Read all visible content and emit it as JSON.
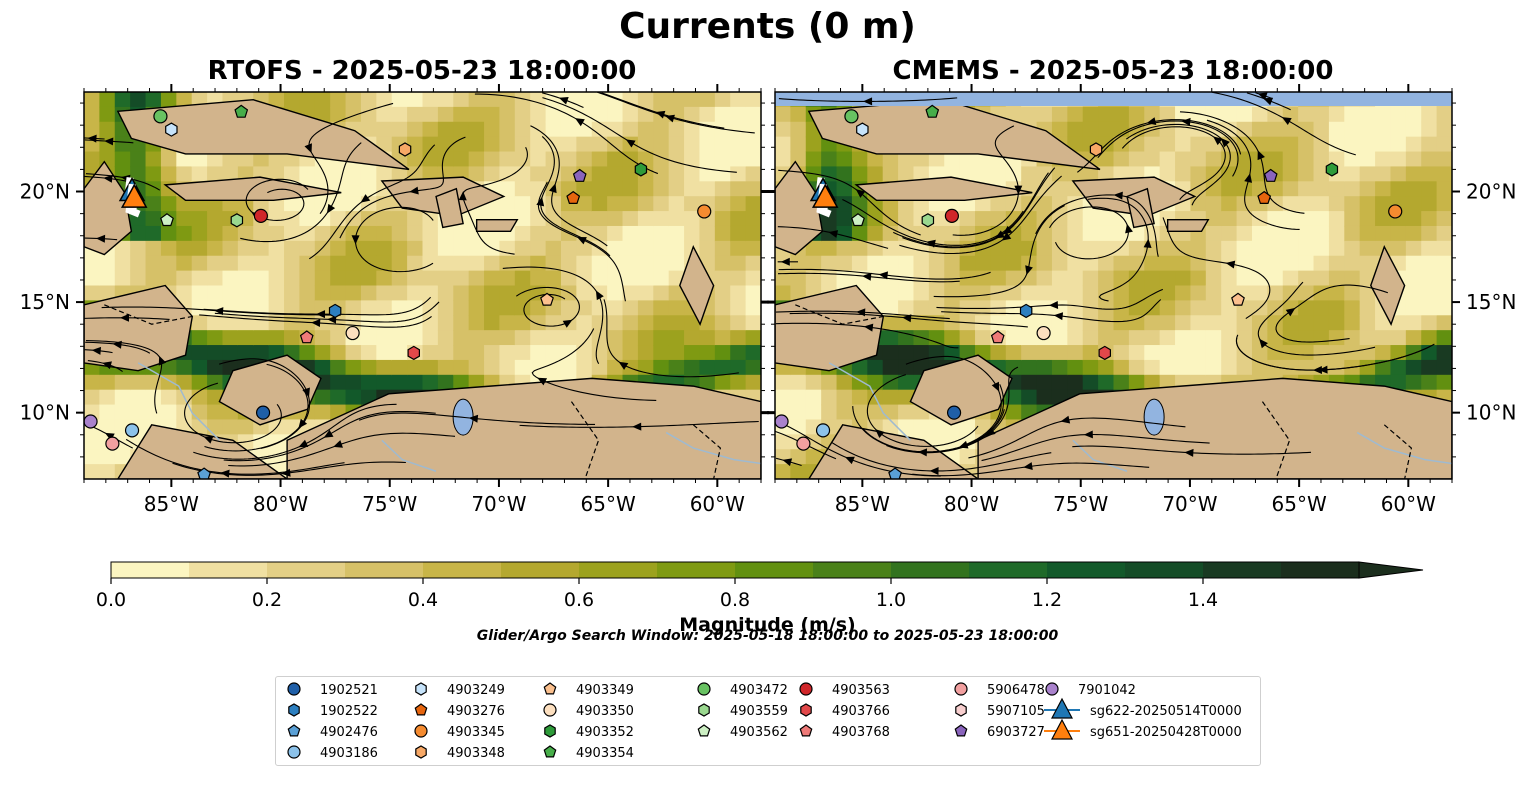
{
  "figure": {
    "suptitle": "Currents (0 m)",
    "search_window": "Glider/Argo Search Window: 2025-05-18 18:00:00 to 2025-05-23 18:00:00"
  },
  "chart_data": [
    {
      "type": "heatmap",
      "title": "RTOFS - 2025-05-23 18:00:00",
      "x_ticks": [
        "85°W",
        "80°W",
        "75°W",
        "70°W",
        "65°W",
        "60°W"
      ],
      "y_ticks": [
        "20°N",
        "15°N",
        "10°N"
      ],
      "xlim": [
        -89,
        -58
      ],
      "ylim": [
        7,
        24.5
      ],
      "field": "surface current magnitude with streamlines"
    },
    {
      "type": "heatmap",
      "title": "CMEMS - 2025-05-23 18:00:00",
      "x_ticks": [
        "85°W",
        "80°W",
        "75°W",
        "70°W",
        "65°W",
        "60°W"
      ],
      "y_ticks": [
        "20°N",
        "15°N",
        "10°N"
      ],
      "xlim": [
        -89,
        -58
      ],
      "ylim": [
        7,
        24.5
      ],
      "field": "surface current magnitude with streamlines"
    }
  ],
  "colorbar": {
    "label": "Magnitude (m/s)",
    "ticks": [
      "0.0",
      "0.2",
      "0.4",
      "0.6",
      "0.8",
      "1.0",
      "1.2",
      "1.4"
    ],
    "min": 0.0,
    "max": 1.6,
    "step": 0.1,
    "extend": "max",
    "colors": [
      "#fbf5c1",
      "#f0e0a2",
      "#e3cf86",
      "#d6c168",
      "#c8b548",
      "#b4a82f",
      "#9ca21e",
      "#7f9a12",
      "#629010",
      "#4a8119",
      "#32731e",
      "#1f6a29",
      "#12592a",
      "#144c27",
      "#193a22",
      "#1b2e1d"
    ]
  },
  "legend": {
    "items": [
      {
        "label": "1902521",
        "marker": "circle",
        "color": "#1f5fa8"
      },
      {
        "label": "1902522",
        "marker": "hexagon",
        "color": "#2c7fc0"
      },
      {
        "label": "4902476",
        "marker": "pentagon",
        "color": "#5aa0d6"
      },
      {
        "label": "4903186",
        "marker": "circle",
        "color": "#8cc2ea"
      },
      {
        "label": "4903249",
        "marker": "hexagon",
        "color": "#c6e3fa"
      },
      {
        "label": "4903276",
        "marker": "pentagon",
        "color": "#e6650e"
      },
      {
        "label": "4903345",
        "marker": "circle",
        "color": "#f58b30"
      },
      {
        "label": "4903348",
        "marker": "hexagon",
        "color": "#f7a866"
      },
      {
        "label": "4903349",
        "marker": "pentagon",
        "color": "#fbc08e"
      },
      {
        "label": "4903350",
        "marker": "circle",
        "color": "#fde0c0"
      },
      {
        "label": "4903352",
        "marker": "hexagon",
        "color": "#2e9b3a"
      },
      {
        "label": "4903354",
        "marker": "pentagon",
        "color": "#47ae4a"
      },
      {
        "label": "4903472",
        "marker": "circle",
        "color": "#68c262"
      },
      {
        "label": "4903559",
        "marker": "hexagon",
        "color": "#9ad88f"
      },
      {
        "label": "4903562",
        "marker": "pentagon",
        "color": "#cdf0c4"
      },
      {
        "label": "4903563",
        "marker": "circle",
        "color": "#d0262a"
      },
      {
        "label": "4903766",
        "marker": "hexagon",
        "color": "#e2484a"
      },
      {
        "label": "4903768",
        "marker": "pentagon",
        "color": "#ef7a78"
      },
      {
        "label": "5906478",
        "marker": "circle",
        "color": "#f2a0a0"
      },
      {
        "label": "5907105",
        "marker": "hexagon",
        "color": "#f8cfcf"
      },
      {
        "label": "6903727",
        "marker": "pentagon",
        "color": "#8a64bc"
      },
      {
        "label": "7901042",
        "marker": "circle",
        "color": "#a982cc"
      },
      {
        "label": "sg622-20250514T0000",
        "marker": "triangle-line",
        "color": "#1f77b4"
      },
      {
        "label": "sg651-20250428T0000",
        "marker": "triangle-line",
        "color": "#ff7f0e"
      }
    ]
  },
  "floats": [
    {
      "id": "4903354",
      "lon": -81.8,
      "lat": 23.6,
      "color": "#47ae4a",
      "marker": "pentagon"
    },
    {
      "id": "4903472",
      "lon": -85.5,
      "lat": 23.4,
      "color": "#68c262",
      "marker": "circle"
    },
    {
      "id": "4903249",
      "lon": -85.0,
      "lat": 22.8,
      "color": "#c6e3fa",
      "marker": "hexagon"
    },
    {
      "id": "4903348",
      "lon": -74.3,
      "lat": 21.9,
      "color": "#f7a866",
      "marker": "hexagon"
    },
    {
      "id": "6903727",
      "lon": -66.3,
      "lat": 20.7,
      "color": "#8a64bc",
      "marker": "pentagon"
    },
    {
      "id": "4903352",
      "lon": -63.5,
      "lat": 21.0,
      "color": "#2e9b3a",
      "marker": "hexagon"
    },
    {
      "id": "4903276",
      "lon": -66.6,
      "lat": 19.7,
      "color": "#e6650e",
      "marker": "pentagon"
    },
    {
      "id": "4903345",
      "lon": -60.6,
      "lat": 19.1,
      "color": "#f58b30",
      "marker": "circle"
    },
    {
      "id": "4903562",
      "lon": -85.2,
      "lat": 18.7,
      "color": "#cdf0c4",
      "marker": "pentagon"
    },
    {
      "id": "4903559",
      "lon": -82.0,
      "lat": 18.7,
      "color": "#9ad88f",
      "marker": "hexagon"
    },
    {
      "id": "4903563",
      "lon": -80.9,
      "lat": 18.9,
      "color": "#d0262a",
      "marker": "circle"
    },
    {
      "id": "4903349",
      "lon": -67.8,
      "lat": 15.1,
      "color": "#fbc08e",
      "marker": "pentagon"
    },
    {
      "id": "1902522",
      "lon": -77.5,
      "lat": 14.6,
      "color": "#2c7fc0",
      "marker": "hexagon"
    },
    {
      "id": "4903350",
      "lon": -76.7,
      "lat": 13.6,
      "color": "#fde0c0",
      "marker": "circle"
    },
    {
      "id": "4903768",
      "lon": -78.8,
      "lat": 13.4,
      "color": "#ef7a78",
      "marker": "pentagon"
    },
    {
      "id": "4903766",
      "lon": -73.9,
      "lat": 12.7,
      "color": "#e2484a",
      "marker": "hexagon"
    },
    {
      "id": "1902521",
      "lon": -80.8,
      "lat": 10.0,
      "color": "#1f5fa8",
      "marker": "circle"
    },
    {
      "id": "7901042",
      "lon": -88.7,
      "lat": 9.6,
      "color": "#a982cc",
      "marker": "circle"
    },
    {
      "id": "4903186",
      "lon": -86.8,
      "lat": 9.2,
      "color": "#8cc2ea",
      "marker": "circle"
    },
    {
      "id": "5906478",
      "lon": -87.7,
      "lat": 8.6,
      "color": "#f2a0a0",
      "marker": "circle"
    },
    {
      "id": "4902476",
      "lon": -83.5,
      "lat": 7.2,
      "color": "#5aa0d6",
      "marker": "pentagon"
    }
  ],
  "gliders": [
    {
      "id": "sg622-20250514T0000",
      "lon": -86.8,
      "lat": 20.0,
      "color": "#1f77b4"
    },
    {
      "id": "sg651-20250428T0000",
      "lon": -86.7,
      "lat": 19.7,
      "color": "#ff7f0e"
    }
  ]
}
